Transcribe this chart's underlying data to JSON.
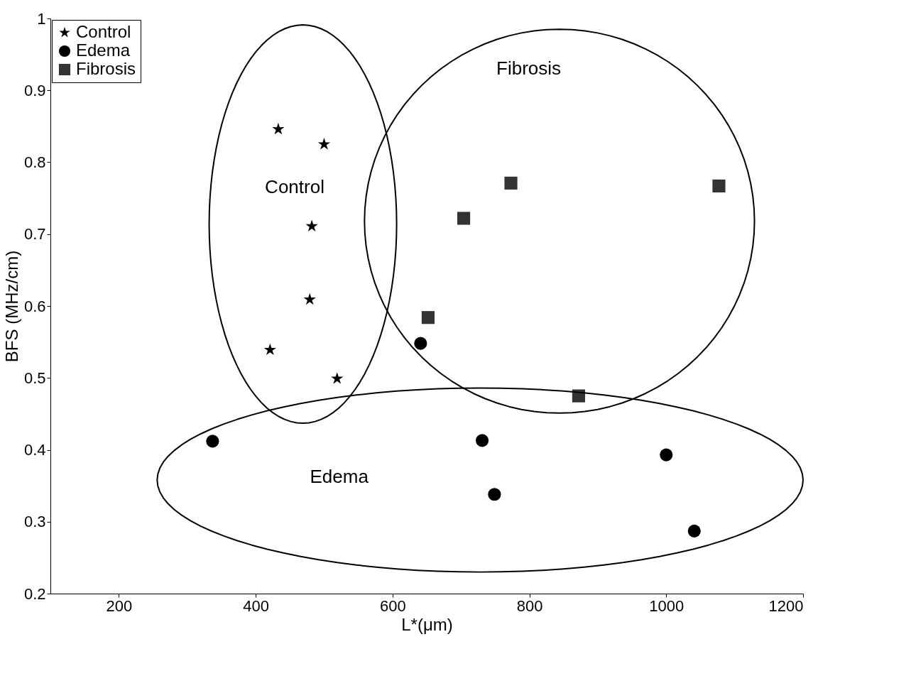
{
  "chart_data": {
    "type": "scatter",
    "xlabel": "L*(μm)",
    "ylabel": "BFS (MHz/cm)",
    "xlim": [
      100,
      1200
    ],
    "xticks": [
      200,
      400,
      600,
      800,
      1000,
      1200
    ],
    "ylim": [
      0.2,
      1
    ],
    "yticks": [
      0.2,
      0.3,
      0.4,
      0.5,
      0.6,
      0.7,
      0.8,
      0.9,
      1
    ],
    "grid": false,
    "legend": "top left",
    "series": [
      {
        "name": "Control",
        "marker": "star",
        "color": "#000000",
        "x": [
          433,
          500,
          482,
          479,
          421,
          519
        ],
        "values": [
          0.846,
          0.825,
          0.711,
          0.609,
          0.539,
          0.499
        ]
      },
      {
        "name": "Edema",
        "marker": "circle",
        "color": "#000000",
        "x": [
          337,
          641,
          731,
          749,
          1000,
          1041
        ],
        "values": [
          0.412,
          0.548,
          0.413,
          0.338,
          0.393,
          0.287
        ]
      },
      {
        "name": "Fibrosis",
        "marker": "square",
        "color": "#333333",
        "x": [
          773,
          704,
          652,
          872,
          1077
        ],
        "values": [
          0.771,
          0.722,
          0.584,
          0.475,
          0.767
        ]
      }
    ],
    "annotations": [
      "Control",
      "Fibrosis",
      "Edema"
    ]
  }
}
